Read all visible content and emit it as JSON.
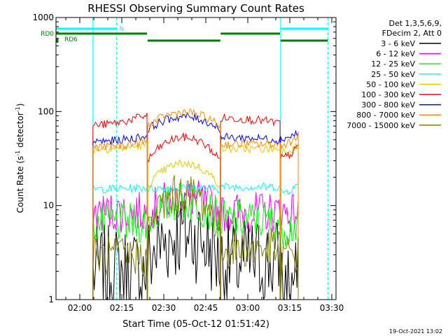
{
  "chart_data": {
    "type": "line",
    "title": "RHESSI Observing Summary Count Rates",
    "xlabel": "Start Time (05-Oct-12 01:51:42)",
    "ylabel": "Count Rate (s",
    "ylabel_sup1": "-1",
    "ylabel_mid": " detector",
    "ylabel_sup2": "-1",
    "ylabel_end": ")",
    "y_scale": "log",
    "ylim": [
      1,
      1000
    ],
    "xlim_minutes": [
      111.5,
      211.5
    ],
    "x_ticks": [
      {
        "label": "02:00",
        "min": 120
      },
      {
        "label": "02:15",
        "min": 135
      },
      {
        "label": "02:30",
        "min": 150
      },
      {
        "label": "02:45",
        "min": 165
      },
      {
        "label": "03:00",
        "min": 180
      },
      {
        "label": "03:15",
        "min": 195
      },
      {
        "label": "03:30",
        "min": 210
      }
    ],
    "y_ticks": [
      {
        "label": "1",
        "value": 1
      },
      {
        "label": "10",
        "value": 10
      },
      {
        "label": "100",
        "value": 100
      },
      {
        "label": "1000",
        "value": 1000
      }
    ],
    "legend": {
      "placement": "top-right",
      "header": [
        "Det 1,3,5,6,9,",
        "FDecim 2, Att 0"
      ]
    },
    "segments": [
      [
        124.7,
        144
      ],
      [
        144.2,
        170.2
      ],
      [
        170.3,
        191.5
      ],
      [
        191.7,
        198
      ]
    ],
    "series": [
      {
        "name": "3 - 6 keV",
        "color": "#000000",
        "key": "s3",
        "values_by_segment": [
          [
            2.0,
            2.0
          ],
          [
            2.5,
            5.0,
            2.5
          ],
          [
            2.5,
            2.5
          ],
          [
            1.5,
            1.5
          ]
        ]
      },
      {
        "name": "6 - 12 keV",
        "color": "#ff00ff",
        "key": "s6",
        "values_by_segment": [
          [
            8.5,
            8.5
          ],
          [
            8.5,
            12.0,
            8.5
          ],
          [
            8.5,
            8.5
          ],
          [
            8.5,
            8.5
          ]
        ]
      },
      {
        "name": "12 - 25 keV",
        "color": "#00ff00",
        "key": "s12",
        "values_by_segment": [
          [
            6.5,
            6.5
          ],
          [
            7.0,
            11.0,
            7.0
          ],
          [
            7.0,
            7.0
          ],
          [
            6.0,
            6.0
          ]
        ]
      },
      {
        "name": "25 - 50 keV",
        "color": "#00ffff",
        "key": "s25",
        "values_by_segment": [
          [
            15.0,
            15.5
          ],
          [
            15.0,
            15.5,
            15.0
          ],
          [
            15.8,
            15.8
          ],
          [
            14.0,
            16.5
          ]
        ]
      },
      {
        "name": "50 - 100 keV",
        "color": "#e6c800",
        "key": "s50",
        "values_by_segment": [
          [
            40,
            44
          ],
          [
            16,
            28,
            16
          ],
          [
            40,
            40
          ],
          [
            38,
            43
          ]
        ]
      },
      {
        "name": "100 - 300 keV",
        "color": "#ff0000",
        "key": "s100",
        "values_by_segment": [
          [
            72,
            92
          ],
          [
            30,
            53,
            30
          ],
          [
            85,
            75
          ],
          [
            32,
            42
          ]
        ]
      },
      {
        "name": "300 - 800 keV",
        "color": "#0000ff",
        "key": "s300",
        "values_by_segment": [
          [
            48,
            55
          ],
          [
            65,
            88,
            65
          ],
          [
            53,
            50
          ],
          [
            52,
            60
          ]
        ]
      },
      {
        "name": "800 - 7000 keV",
        "color": "#ff8c00",
        "key": "s800",
        "values_by_segment": [
          [
            42,
            48
          ],
          [
            70,
            98,
            70
          ],
          [
            45,
            45
          ],
          [
            45,
            55
          ]
        ]
      },
      {
        "name": "7000 - 15000 keV",
        "color": "#808000",
        "key": "s7000",
        "values_by_segment": [
          [
            2.9,
            2.9
          ],
          [
            5.0,
            13.5,
            5.0
          ],
          [
            3.5,
            3.5
          ],
          [
            3.0,
            3.0
          ]
        ]
      }
    ],
    "flags": [
      {
        "name": "SAA / eclipse boundary lines",
        "color": "#00ffff",
        "solid_x_minutes": [
          111.5,
          124.7,
          191.7
        ],
        "dashed_x_minutes": [
          133.1,
          208.6
        ]
      },
      {
        "name": "N",
        "color": "#00ffff",
        "label": "N",
        "intervals": [
          [
            111.5,
            133.1
          ],
          [
            191.7,
            208.6
          ]
        ]
      },
      {
        "name": "RD0",
        "color": "#008000",
        "label": "RD0",
        "intervals": [
          [
            111.5,
            144
          ],
          [
            170.3,
            191.5
          ]
        ]
      },
      {
        "name": "RD6",
        "color": "#008000",
        "label": "RD6",
        "intervals": [
          [
            144.2,
            170.2
          ],
          [
            191.7,
            208.6
          ]
        ]
      }
    ],
    "footer_date": "19-Oct-2021 13:02"
  }
}
